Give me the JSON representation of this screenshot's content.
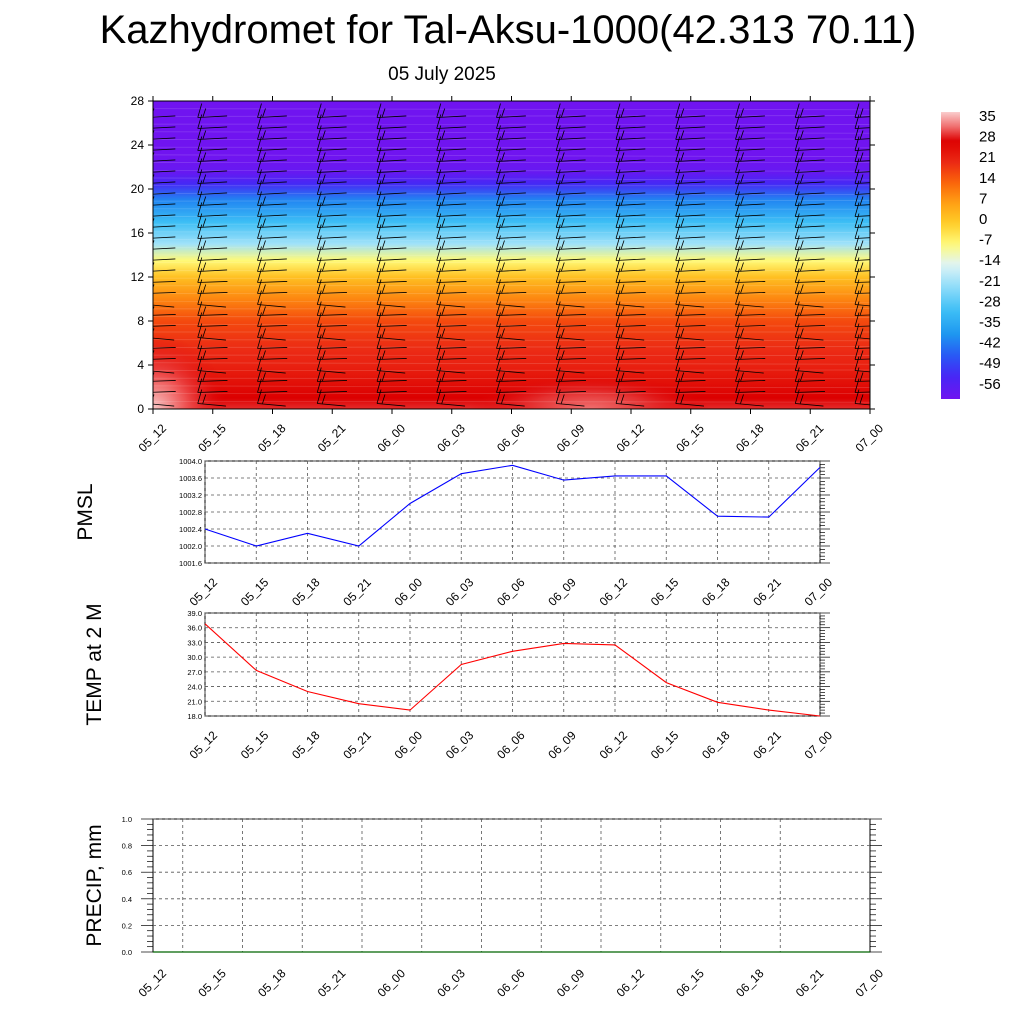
{
  "title": "Kazhydromet for Tal-Aksu-1000(42.313 70.11)",
  "subtitle": "05 July 2025",
  "time_labels": [
    "05_12",
    "05_15",
    "05_18",
    "05_21",
    "06_00",
    "06_03",
    "06_06",
    "06_09",
    "06_12",
    "06_15",
    "06_18",
    "06_21",
    "07_00"
  ],
  "chart_data": [
    {
      "type": "heatmap",
      "title": "",
      "ylim": [
        0,
        28
      ],
      "yticks": [
        0,
        4,
        8,
        12,
        16,
        20,
        24,
        28
      ],
      "colorbar_labels": [
        "35",
        "28",
        "21",
        "14",
        "7",
        "0",
        "-7",
        "-14",
        "-21",
        "-28",
        "-35",
        "-42",
        "-49",
        "-56"
      ],
      "colorbar_range": [
        -60,
        38
      ],
      "profile": [
        {
          "y": 0,
          "t": 30
        },
        {
          "y": 1,
          "t": 28
        },
        {
          "y": 2,
          "t": 26
        },
        {
          "y": 3,
          "t": 24
        },
        {
          "y": 4,
          "t": 22
        },
        {
          "y": 5,
          "t": 21
        },
        {
          "y": 6,
          "t": 20
        },
        {
          "y": 8,
          "t": 17
        },
        {
          "y": 10,
          "t": 10
        },
        {
          "y": 12,
          "t": 2
        },
        {
          "y": 13.5,
          "t": -7
        },
        {
          "y": 15,
          "t": -20
        },
        {
          "y": 17,
          "t": -30
        },
        {
          "y": 19,
          "t": -40
        },
        {
          "y": 20.5,
          "t": -52
        },
        {
          "y": 21.5,
          "t": -58
        },
        {
          "y": 23,
          "t": -60
        },
        {
          "y": 28,
          "t": -60
        }
      ],
      "warm_spots": [
        {
          "x": 0,
          "y": 0,
          "t": 36
        },
        {
          "x": 7.3,
          "y": 0,
          "t": 34
        }
      ],
      "wind_barbs": "black wind barbs at each time step and height level"
    },
    {
      "type": "line",
      "ylabel": "PMSL",
      "ylim": [
        1001.6,
        1004.0
      ],
      "yticks": [
        "1001.6",
        "1002.0",
        "1002.4",
        "1002.8",
        "1003.2",
        "1003.6",
        "1004.0"
      ],
      "series": [
        {
          "color": "#0000ff",
          "values": [
            1002.4,
            1002.0,
            1002.3,
            1002.0,
            1003.0,
            1003.7,
            1003.9,
            1003.55,
            1003.65,
            1003.65,
            1002.7,
            1002.68,
            1003.85
          ]
        }
      ]
    },
    {
      "type": "line",
      "ylabel": "TEMP at 2 M",
      "ylim": [
        18.0,
        39.0
      ],
      "yticks": [
        "18.0",
        "21.0",
        "24.0",
        "27.0",
        "30.0",
        "33.0",
        "36.0",
        "39.0"
      ],
      "series": [
        {
          "color": "#ff0000",
          "values": [
            36.8,
            27.3,
            23.0,
            20.5,
            19.2,
            28.5,
            31.2,
            32.8,
            32.5,
            24.8,
            20.8,
            19.2,
            18.0
          ]
        }
      ]
    },
    {
      "type": "line",
      "ylabel": "PRECIP, mm",
      "ylim": [
        0.0,
        1.0
      ],
      "yticks": [
        "0.0",
        "0.2",
        "0.4",
        "0.6",
        "0.8",
        "1.0"
      ],
      "series": [
        {
          "color": "#006400",
          "values": [
            0,
            0,
            0,
            0,
            0,
            0,
            0,
            0,
            0,
            0,
            0,
            0,
            0
          ]
        }
      ]
    }
  ]
}
